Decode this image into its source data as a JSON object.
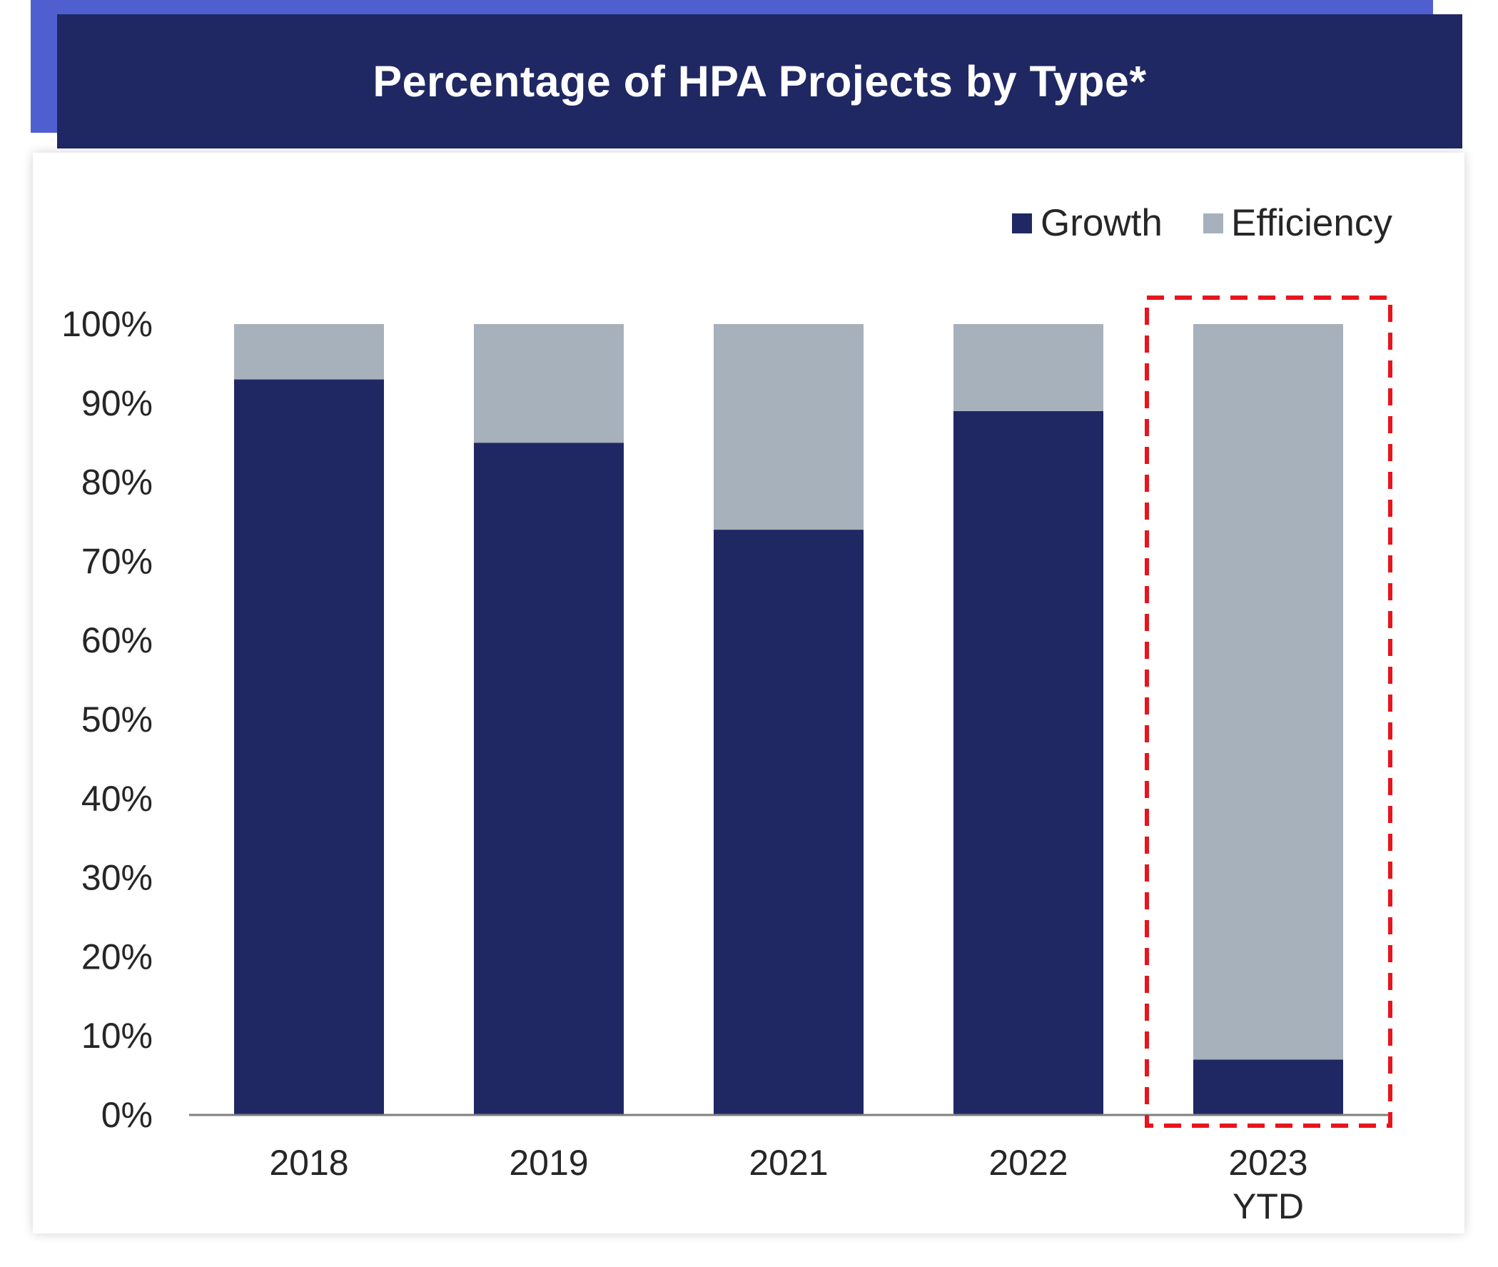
{
  "title": "Percentage of HPA Projects by Type*",
  "colors": {
    "accent": "#4f5fcf",
    "title_background": "#1f2863",
    "growth": "#1f2863",
    "efficiency": "#a6b1bc",
    "highlight": "#e8141c",
    "axis": "#7f7f7f",
    "text": "#262626"
  },
  "chart_data": {
    "type": "bar",
    "stacked": true,
    "title": "Percentage of HPA Projects by Type*",
    "categories": [
      [
        "2018"
      ],
      [
        "2019"
      ],
      [
        "2021"
      ],
      [
        "2022"
      ],
      [
        "2023",
        "YTD"
      ]
    ],
    "series": [
      {
        "name": "Growth",
        "color": "#1f2863",
        "values": [
          93,
          85,
          74,
          89,
          7
        ]
      },
      {
        "name": "Efficiency",
        "color": "#a6b1bc",
        "values": [
          7,
          15,
          26,
          11,
          93
        ]
      }
    ],
    "ylim": [
      0,
      100
    ],
    "yticks": [
      "0%",
      "10%",
      "20%",
      "30%",
      "40%",
      "50%",
      "60%",
      "70%",
      "80%",
      "90%",
      "100%"
    ],
    "legend_position": "top-right",
    "grid": false,
    "highlighted_category": "2023 YTD"
  }
}
